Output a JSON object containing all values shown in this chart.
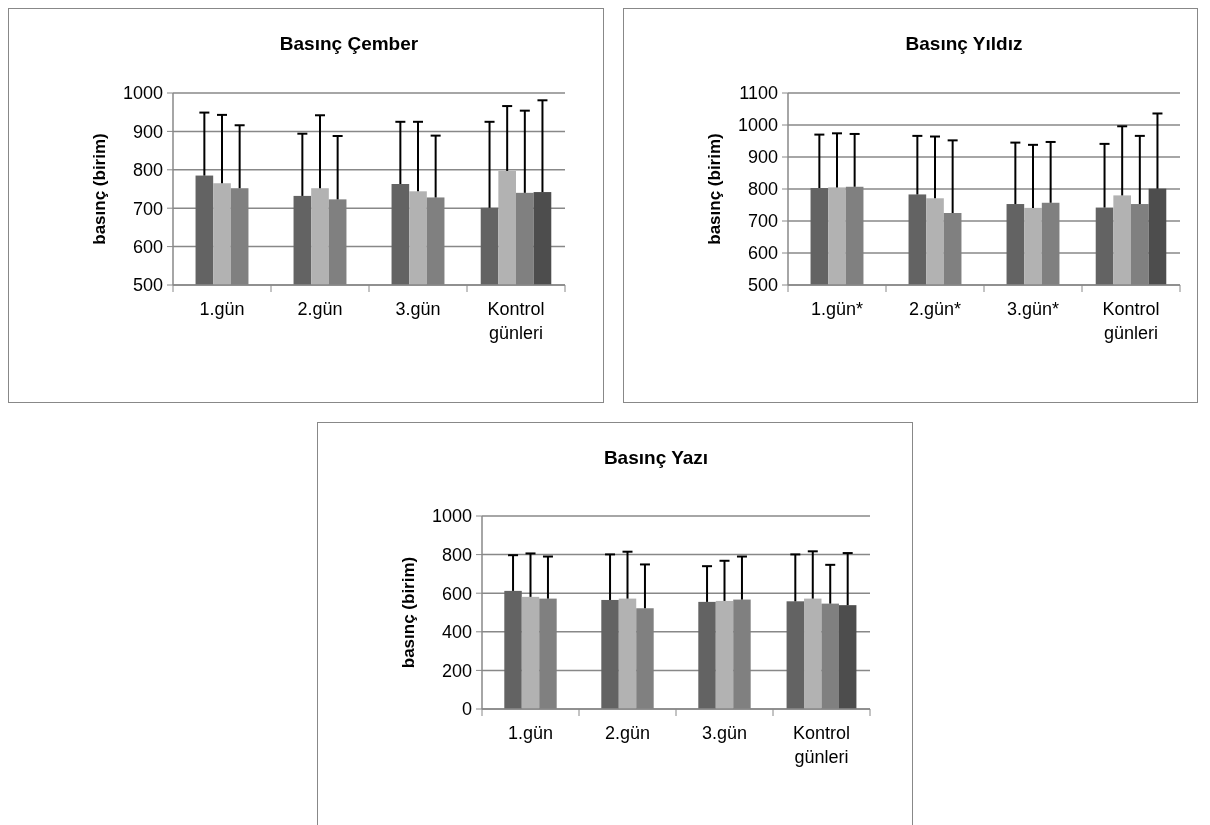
{
  "chart_data": [
    {
      "type": "bar",
      "title": "Basınç Çember",
      "ylabel": "basınç (birim)",
      "categories": [
        "1.gün",
        "2.gün",
        "3.gün",
        "Kontrol günleri"
      ],
      "ylim": [
        500,
        1000
      ],
      "yticks": [
        500,
        600,
        700,
        800,
        900,
        1000
      ],
      "grid": "y",
      "series": [
        {
          "color": "#636363",
          "values": [
            785,
            732,
            763,
            701
          ],
          "errors": [
            [
              785,
              949
            ],
            [
              732,
              894
            ],
            [
              763,
              925
            ],
            [
              701,
              925
            ]
          ]
        },
        {
          "color": "#b2b2b2",
          "values": [
            765,
            752,
            744,
            797
          ],
          "errors": [
            [
              765,
              943
            ],
            [
              752,
              942
            ],
            [
              744,
              925
            ],
            [
              797,
              966
            ]
          ]
        },
        {
          "color": "#808080",
          "values": [
            752,
            723,
            728,
            740
          ],
          "errors": [
            [
              752,
              916
            ],
            [
              723,
              888
            ],
            [
              728,
              889
            ],
            [
              740,
              954
            ]
          ]
        },
        {
          "color": "#4d4d4d",
          "values": [
            null,
            null,
            null,
            742
          ],
          "errors": [
            null,
            null,
            null,
            [
              742,
              981
            ]
          ]
        }
      ]
    },
    {
      "type": "bar",
      "title": "Basınç Yıldız",
      "ylabel": "basınç (birim)",
      "categories": [
        "1.gün*",
        "2.gün*",
        "3.gün*",
        "Kontrol günleri"
      ],
      "ylim": [
        500,
        1100
      ],
      "yticks": [
        500,
        600,
        700,
        800,
        900,
        1000,
        1100
      ],
      "grid": "y",
      "series": [
        {
          "color": "#636363",
          "values": [
            803,
            783,
            753,
            742
          ],
          "errors": [
            [
              803,
              970
            ],
            [
              783,
              966
            ],
            [
              753,
              945
            ],
            [
              742,
              941
            ]
          ]
        },
        {
          "color": "#b2b2b2",
          "values": [
            805,
            771,
            741,
            780
          ],
          "errors": [
            [
              805,
              974
            ],
            [
              771,
              964
            ],
            [
              741,
              938
            ],
            [
              780,
              996
            ]
          ]
        },
        {
          "color": "#808080",
          "values": [
            807,
            725,
            757,
            753
          ],
          "errors": [
            [
              807,
              972
            ],
            [
              725,
              952
            ],
            [
              757,
              947
            ],
            [
              753,
              966
            ]
          ]
        },
        {
          "color": "#4d4d4d",
          "values": [
            null,
            null,
            null,
            801
          ],
          "errors": [
            null,
            null,
            null,
            [
              801,
              1036
            ]
          ]
        }
      ]
    },
    {
      "type": "bar",
      "title": "Basınç Yazı",
      "ylabel": "basınç (birim)",
      "categories": [
        "1.gün",
        "2.gün",
        "3.gün",
        "Kontrol günleri"
      ],
      "ylim": [
        0,
        1000
      ],
      "yticks": [
        0,
        200,
        400,
        600,
        800,
        1000
      ],
      "grid": "y",
      "series": [
        {
          "color": "#636363",
          "values": [
            612,
            565,
            555,
            558
          ],
          "errors": [
            [
              612,
              797
            ],
            [
              565,
              801
            ],
            [
              555,
              740
            ],
            [
              558,
              801
            ]
          ]
        },
        {
          "color": "#b2b2b2",
          "values": [
            581,
            572,
            560,
            572
          ],
          "errors": [
            [
              581,
              806
            ],
            [
              572,
              815
            ],
            [
              560,
              768
            ],
            [
              572,
              817
            ]
          ]
        },
        {
          "color": "#808080",
          "values": [
            572,
            522,
            567,
            546
          ],
          "errors": [
            [
              572,
              790
            ],
            [
              522,
              749
            ],
            [
              567,
              790
            ],
            [
              546,
              747
            ]
          ]
        },
        {
          "color": "#4d4d4d",
          "values": [
            null,
            null,
            null,
            538
          ],
          "errors": [
            null,
            null,
            null,
            [
              538,
              808
            ]
          ]
        }
      ]
    }
  ]
}
